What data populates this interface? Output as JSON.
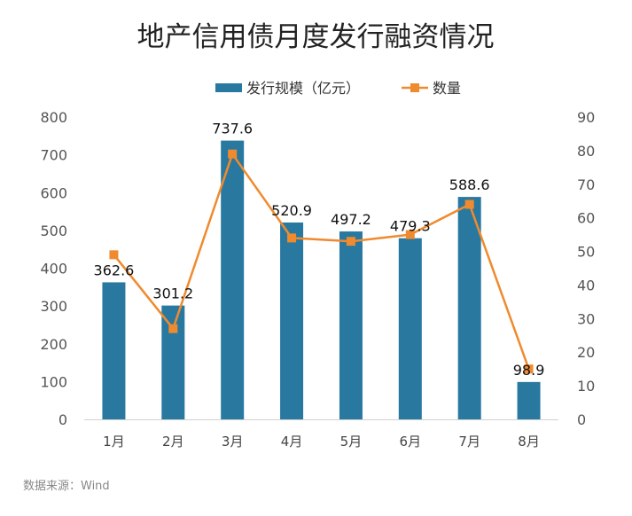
{
  "chart_data": {
    "type": "bar",
    "title": "地产信用债月度发行融资情况",
    "categories": [
      "1月",
      "2月",
      "3月",
      "4月",
      "5月",
      "6月",
      "7月",
      "8月"
    ],
    "series": [
      {
        "name": "发行规模（亿元）",
        "type": "bar",
        "axis": "left",
        "color": "#2878a0",
        "values": [
          362.6,
          301.2,
          737.6,
          520.9,
          497.2,
          479.3,
          588.6,
          98.9
        ],
        "labels": [
          "362.6",
          "301.2",
          "737.6",
          "520.9",
          "497.2",
          "479.3",
          "588.6",
          "98.9"
        ]
      },
      {
        "name": "数量",
        "type": "line",
        "axis": "right",
        "color": "#f08a2e",
        "values": [
          49,
          27,
          79,
          54,
          53,
          55,
          64,
          15
        ]
      }
    ],
    "y_left": {
      "min": 0,
      "max": 800,
      "ticks": [
        "0",
        "100",
        "200",
        "300",
        "400",
        "500",
        "600",
        "700",
        "800"
      ]
    },
    "y_right": {
      "min": 0,
      "max": 90,
      "ticks": [
        "0",
        "10",
        "20",
        "30",
        "40",
        "50",
        "60",
        "70",
        "80",
        "90"
      ]
    },
    "grid": false,
    "legend": "top-center"
  },
  "source": "数据来源：Wind"
}
